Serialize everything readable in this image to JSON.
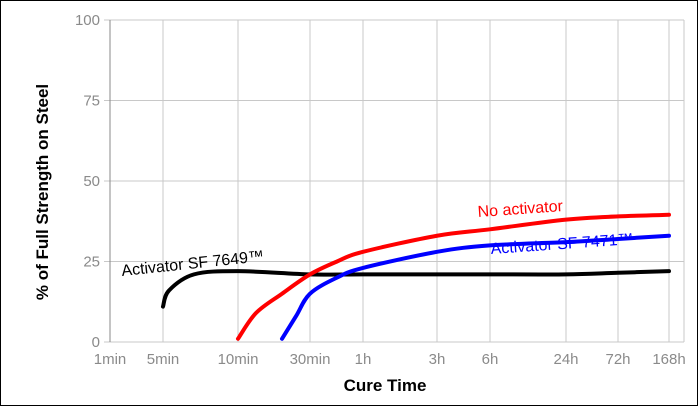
{
  "chart_data": {
    "type": "line",
    "xlabel": "Cure Time",
    "ylabel": "% of Full Strength on Steel",
    "x_ticks": [
      "1min",
      "5min",
      "10min",
      "30min",
      "1h",
      "3h",
      "6h",
      "24h",
      "72h",
      "168h"
    ],
    "y_ticks": [
      "0",
      "25",
      "50",
      "75",
      "100"
    ],
    "ylim": [
      0,
      100
    ],
    "grid": true,
    "series": [
      {
        "name": "Activator SF 7649™",
        "color": "#000000",
        "points": [
          [
            "5min",
            11
          ],
          [
            "5min+",
            16
          ],
          [
            "7min",
            21
          ],
          [
            "10min",
            22
          ],
          [
            "30min",
            21
          ],
          [
            "1h",
            21
          ],
          [
            "3h",
            21
          ],
          [
            "6h",
            21
          ],
          [
            "24h",
            21
          ],
          [
            "72h",
            21.5
          ],
          [
            "168h",
            22
          ]
        ]
      },
      {
        "name": "No activator",
        "color": "#ff0000",
        "points": [
          [
            "10min",
            1
          ],
          [
            "15min",
            9
          ],
          [
            "20min",
            15
          ],
          [
            "30min",
            21
          ],
          [
            "45min",
            25
          ],
          [
            "1h",
            28
          ],
          [
            "3h",
            33
          ],
          [
            "6h",
            35
          ],
          [
            "24h",
            38
          ],
          [
            "72h",
            39
          ],
          [
            "168h",
            39.5
          ]
        ]
      },
      {
        "name": "Activator SF 7471™",
        "color": "#0000ff",
        "points": [
          [
            "20min",
            1
          ],
          [
            "25min",
            8
          ],
          [
            "30min",
            15
          ],
          [
            "45min",
            20
          ],
          [
            "1h",
            23
          ],
          [
            "3h",
            28
          ],
          [
            "6h",
            30
          ],
          [
            "24h",
            31
          ],
          [
            "72h",
            32
          ],
          [
            "168h",
            33
          ]
        ]
      }
    ]
  }
}
